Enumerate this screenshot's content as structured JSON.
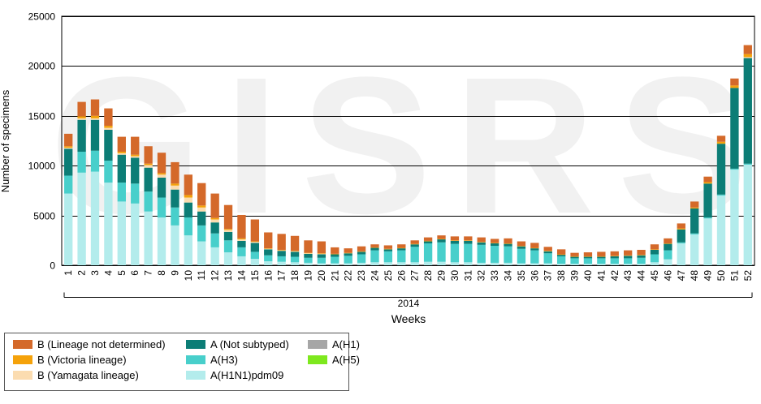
{
  "chart_data": {
    "type": "bar",
    "stacked": true,
    "watermark": "GISRS",
    "ylabel": "Number of specimens",
    "xlabel": "Weeks",
    "year_label": "2014",
    "ylim": [
      0,
      25000
    ],
    "yticks": [
      0,
      5000,
      10000,
      15000,
      20000,
      25000
    ],
    "grid": "horizontal",
    "legend_position": "bottom-left",
    "categories": [
      "1",
      "2",
      "3",
      "4",
      "5",
      "6",
      "7",
      "8",
      "9",
      "10",
      "11",
      "12",
      "13",
      "14",
      "15",
      "16",
      "17",
      "18",
      "19",
      "20",
      "21",
      "22",
      "23",
      "24",
      "25",
      "26",
      "27",
      "28",
      "29",
      "30",
      "31",
      "32",
      "33",
      "34",
      "35",
      "36",
      "37",
      "38",
      "39",
      "40",
      "41",
      "42",
      "43",
      "44",
      "45",
      "46",
      "47",
      "48",
      "49",
      "50",
      "51",
      "52"
    ],
    "series": [
      {
        "name": "A(H1N1)pdm09",
        "color": "#b3ecec",
        "values": [
          7200,
          9300,
          9400,
          8300,
          6400,
          6200,
          5400,
          4800,
          4000,
          3000,
          2400,
          1800,
          1300,
          900,
          650,
          400,
          350,
          300,
          250,
          200,
          200,
          200,
          250,
          300,
          300,
          300,
          300,
          350,
          350,
          300,
          300,
          250,
          250,
          250,
          200,
          200,
          200,
          150,
          150,
          150,
          150,
          150,
          150,
          150,
          300,
          600,
          2200,
          3100,
          4700,
          7000,
          9600,
          10100
        ]
      },
      {
        "name": "A(H3)",
        "color": "#48cfcb",
        "values": [
          1800,
          2100,
          2100,
          2200,
          1900,
          2000,
          2000,
          2000,
          1800,
          1800,
          1600,
          1400,
          1200,
          900,
          700,
          600,
          550,
          550,
          500,
          550,
          650,
          750,
          850,
          1200,
          1100,
          1200,
          1550,
          1850,
          1950,
          1850,
          1850,
          1800,
          1700,
          1650,
          1450,
          1300,
          1000,
          750,
          550,
          550,
          550,
          550,
          550,
          600,
          800,
          900,
          100,
          100,
          100,
          100,
          100,
          100
        ]
      },
      {
        "name": "A(Not subtyped)",
        "color": "#0c7d76",
        "values": [
          2700,
          3200,
          3100,
          3100,
          2800,
          2600,
          2400,
          2000,
          1800,
          1500,
          1400,
          1100,
          850,
          650,
          900,
          600,
          550,
          500,
          400,
          350,
          250,
          250,
          250,
          250,
          200,
          200,
          250,
          200,
          300,
          300,
          300,
          250,
          250,
          250,
          250,
          200,
          200,
          150,
          150,
          150,
          150,
          200,
          250,
          250,
          450,
          650,
          1300,
          2500,
          3400,
          5100,
          8100,
          10600
        ]
      },
      {
        "name": "A(H1)",
        "color": "#a6a6a6",
        "values": [
          0,
          0,
          0,
          0,
          0,
          0,
          0,
          0,
          0,
          0,
          0,
          0,
          0,
          0,
          0,
          0,
          0,
          0,
          0,
          0,
          0,
          0,
          0,
          0,
          0,
          0,
          0,
          0,
          0,
          0,
          0,
          0,
          0,
          0,
          0,
          0,
          0,
          0,
          0,
          0,
          0,
          0,
          0,
          0,
          0,
          0,
          0,
          0,
          0,
          0,
          0,
          0
        ]
      },
      {
        "name": "A(H5)",
        "color": "#7ee81e",
        "values": [
          0,
          0,
          0,
          0,
          0,
          0,
          0,
          0,
          0,
          0,
          0,
          0,
          0,
          0,
          0,
          0,
          0,
          0,
          0,
          0,
          0,
          0,
          0,
          0,
          0,
          0,
          0,
          0,
          0,
          0,
          0,
          0,
          0,
          0,
          0,
          0,
          0,
          0,
          0,
          0,
          0,
          0,
          0,
          0,
          0,
          0,
          0,
          0,
          0,
          0,
          0,
          0
        ]
      },
      {
        "name": "B (Yamagata lineage)",
        "color": "#fbdcb0",
        "values": [
          100,
          150,
          150,
          200,
          150,
          150,
          250,
          300,
          400,
          500,
          400,
          300,
          200,
          150,
          100,
          50,
          50,
          50,
          50,
          50,
          0,
          0,
          0,
          0,
          0,
          0,
          0,
          0,
          0,
          0,
          0,
          0,
          0,
          0,
          0,
          0,
          0,
          0,
          0,
          0,
          0,
          0,
          0,
          0,
          0,
          0,
          0,
          0,
          0,
          0,
          0,
          100
        ]
      },
      {
        "name": "B (Victoria lineage)",
        "color": "#f5a20a",
        "values": [
          150,
          200,
          250,
          200,
          150,
          150,
          150,
          150,
          200,
          250,
          200,
          150,
          100,
          100,
          50,
          50,
          50,
          50,
          50,
          50,
          50,
          50,
          50,
          50,
          50,
          50,
          50,
          50,
          50,
          50,
          50,
          50,
          50,
          50,
          50,
          50,
          50,
          50,
          50,
          50,
          50,
          50,
          50,
          50,
          50,
          50,
          100,
          100,
          150,
          200,
          250,
          300
        ]
      },
      {
        "name": "B (Lineage not determined)",
        "color": "#d4692a",
        "values": [
          1250,
          1450,
          1650,
          1750,
          1500,
          1800,
          1750,
          2050,
          2150,
          2050,
          2250,
          2450,
          2400,
          2350,
          2200,
          1600,
          1600,
          1500,
          1250,
          1200,
          650,
          450,
          500,
          300,
          350,
          350,
          350,
          350,
          350,
          400,
          400,
          450,
          400,
          500,
          450,
          500,
          400,
          500,
          350,
          400,
          450,
          450,
          500,
          500,
          500,
          500,
          500,
          600,
          550,
          600,
          700,
          900
        ]
      }
    ]
  }
}
